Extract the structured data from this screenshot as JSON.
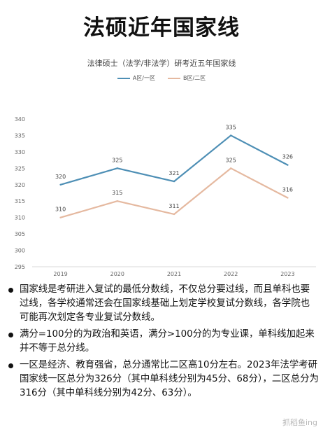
{
  "page_title": "法硕近年国家线",
  "bullets": [
    "国家线是考研进入复试的最低分数线，不仅总分要过线，而且单科也要过线，各学校通常还会在国家线基础上划定学校复试分数线，各学院也可能再次划定各专业复试分数线。",
    "满分=100分的为政治和英语，满分>100分的为专业课，单科线加起来并不等于总分线。",
    "一区是经济、教育强省，总分通常比二区高10分左右。2023年法学考研国家线一区总分为326分（其中单科线分别为45分、68分），二区总分为316分（其中单科线分别为42分、63分）。"
  ],
  "watermark": "抓稻鱼ing",
  "chart_data": {
    "type": "line",
    "title": "法律硕士（法学/非法学）研考近五年国家线",
    "categories": [
      "2019",
      "2020",
      "2021",
      "2022",
      "2023"
    ],
    "ylim": [
      295,
      340
    ],
    "yticks": [
      295,
      300,
      305,
      310,
      315,
      320,
      325,
      330,
      335,
      340
    ],
    "grid": false,
    "legend_position": "top",
    "series": [
      {
        "name": "A区/一区",
        "color": "#4e8fb5",
        "values": [
          320,
          325,
          321,
          335,
          326
        ]
      },
      {
        "name": "B区/二区",
        "color": "#e5b9a0",
        "values": [
          310,
          315,
          311,
          325,
          316
        ]
      }
    ]
  }
}
